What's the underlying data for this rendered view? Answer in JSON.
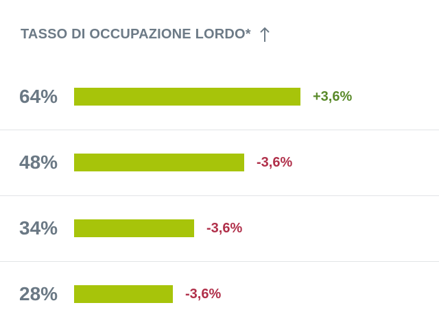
{
  "header": {
    "title": "TASSO DI OCCUPAZIONE LORDO*",
    "sort_icon": "arrow-up-icon"
  },
  "colors": {
    "bar": "#a7c40a",
    "positive": "#5a8a2a",
    "negative": "#b0304a",
    "label": "#6a7884"
  },
  "rows": [
    {
      "label": "64%",
      "value": 64,
      "delta": "+3,6%",
      "direction": "positive"
    },
    {
      "label": "48%",
      "value": 48,
      "delta": "-3,6%",
      "direction": "negative"
    },
    {
      "label": "34%",
      "value": 34,
      "delta": "-3,6%",
      "direction": "negative"
    },
    {
      "label": "28%",
      "value": 28,
      "delta": "-3,6%",
      "direction": "negative"
    }
  ]
}
